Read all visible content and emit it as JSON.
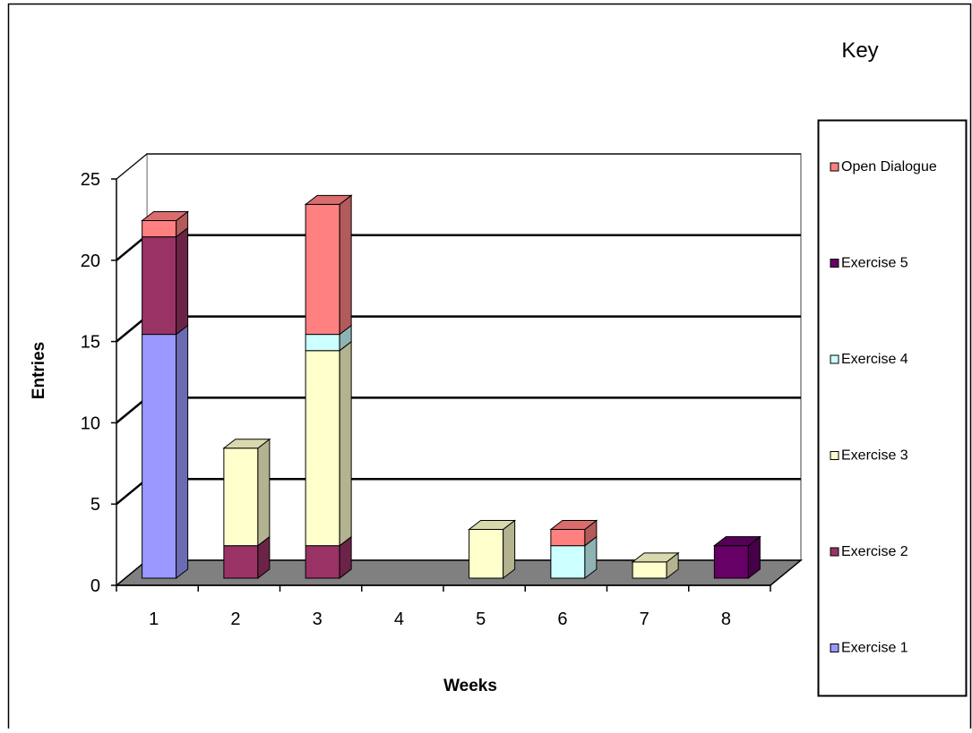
{
  "chart_data": {
    "type": "bar",
    "stacked": true,
    "three_d": true,
    "categories": [
      "1",
      "2",
      "3",
      "4",
      "5",
      "6",
      "7",
      "8"
    ],
    "series": [
      {
        "name": "Exercise 1",
        "values": [
          15,
          0,
          0,
          0,
          0,
          0,
          0,
          0
        ],
        "color": "#9999ff"
      },
      {
        "name": "Exercise 2",
        "values": [
          6,
          2,
          2,
          0,
          0,
          0,
          0,
          0
        ],
        "color": "#993366"
      },
      {
        "name": "Exercise 3",
        "values": [
          0,
          6,
          12,
          0,
          3,
          0,
          1,
          0
        ],
        "color": "#ffffcc"
      },
      {
        "name": "Exercise 4",
        "values": [
          0,
          0,
          1,
          0,
          0,
          2,
          0,
          0
        ],
        "color": "#ccffff"
      },
      {
        "name": "Exercise 5",
        "values": [
          0,
          0,
          0,
          0,
          0,
          0,
          0,
          2
        ],
        "color": "#660066"
      },
      {
        "name": "Open Dialogue",
        "values": [
          1,
          0,
          8,
          0,
          0,
          1,
          0,
          0
        ],
        "color": "#ff8080"
      }
    ],
    "xlabel": "Weeks",
    "ylabel": "Entries",
    "ylim": [
      0,
      25
    ],
    "yticks": [
      "0",
      "5",
      "10",
      "15",
      "20",
      "25"
    ],
    "grid": true,
    "legend_title": "Key",
    "legend_position": "right",
    "legend_order": [
      "Open Dialogue",
      "Exercise 5",
      "Exercise 4",
      "Exercise 3",
      "Exercise 2",
      "Exercise 1"
    ]
  }
}
